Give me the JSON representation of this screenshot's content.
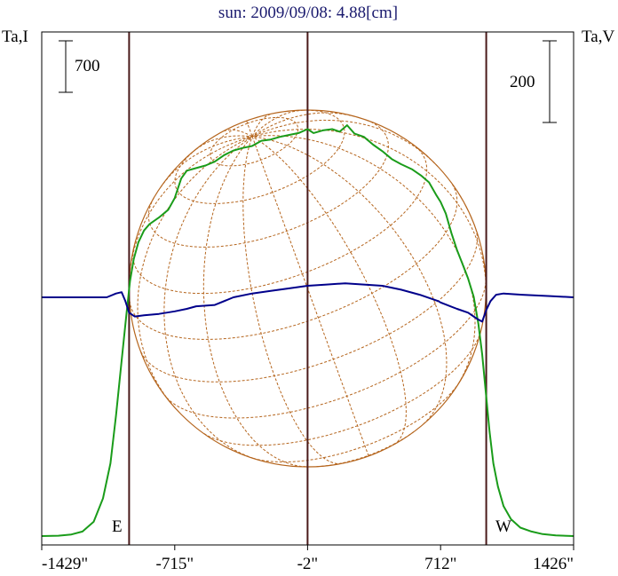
{
  "title": "sun: 2009/09/08: 4.88[cm]",
  "left_axis_label": "Ta,I",
  "right_axis_label": "Ta,V",
  "scale_bar_left": "700",
  "scale_bar_right": "200",
  "limb_labels": {
    "east": "E",
    "west": "W"
  },
  "colors": {
    "intensity": "#1a9c1a",
    "polarization": "#00008b",
    "sphere": "#b5651d",
    "guides": "#4a1a1a",
    "title": "#1a1a6e"
  },
  "chart_data": {
    "type": "line",
    "title": "sun: 2009/09/08: 4.88[cm]",
    "xlabel": "",
    "ylabel_left": "Ta,I",
    "ylabel_right": "Ta,V",
    "x_tick_labels": [
      "-1429\"",
      "-715\"",
      "-2\"",
      "712\"",
      "1426\""
    ],
    "x_ticks": [
      -1429,
      -715,
      -2,
      712,
      1426
    ],
    "xlim": [
      -1429,
      1426
    ],
    "vertical_markers": [
      -960,
      -2,
      957
    ],
    "solar_radius_arcsec": 958,
    "scale_bars": {
      "intensity": 700,
      "polarization": 200
    },
    "series": [
      {
        "name": "Ta,I",
        "color": "#1a9c1a",
        "axis": "left",
        "points": [
          [
            -1429,
            0
          ],
          [
            -1340,
            3
          ],
          [
            -1270,
            12
          ],
          [
            -1210,
            35
          ],
          [
            -1150,
            110
          ],
          [
            -1100,
            290
          ],
          [
            -1060,
            560
          ],
          [
            -1030,
            930
          ],
          [
            -1000,
            1350
          ],
          [
            -975,
            1700
          ],
          [
            -955,
            1960
          ],
          [
            -935,
            2130
          ],
          [
            -910,
            2260
          ],
          [
            -880,
            2350
          ],
          [
            -850,
            2400
          ],
          [
            -800,
            2450
          ],
          [
            -750,
            2510
          ],
          [
            -715,
            2600
          ],
          [
            -680,
            2750
          ],
          [
            -650,
            2810
          ],
          [
            -600,
            2830
          ],
          [
            -550,
            2850
          ],
          [
            -500,
            2880
          ],
          [
            -450,
            2930
          ],
          [
            -400,
            2965
          ],
          [
            -350,
            2985
          ],
          [
            -300,
            3000
          ],
          [
            -250,
            3040
          ],
          [
            -200,
            3050
          ],
          [
            -150,
            3070
          ],
          [
            -100,
            3085
          ],
          [
            -50,
            3100
          ],
          [
            -2,
            3130
          ],
          [
            30,
            3100
          ],
          [
            80,
            3120
          ],
          [
            130,
            3130
          ],
          [
            170,
            3110
          ],
          [
            210,
            3160
          ],
          [
            250,
            3095
          ],
          [
            300,
            3070
          ],
          [
            350,
            3010
          ],
          [
            400,
            2960
          ],
          [
            450,
            2900
          ],
          [
            500,
            2860
          ],
          [
            560,
            2820
          ],
          [
            610,
            2770
          ],
          [
            650,
            2720
          ],
          [
            690,
            2620
          ],
          [
            712,
            2570
          ],
          [
            740,
            2480
          ],
          [
            770,
            2330
          ],
          [
            800,
            2200
          ],
          [
            830,
            2090
          ],
          [
            860,
            1980
          ],
          [
            890,
            1840
          ],
          [
            915,
            1630
          ],
          [
            935,
            1400
          ],
          [
            955,
            1100
          ],
          [
            975,
            800
          ],
          [
            995,
            560
          ],
          [
            1020,
            380
          ],
          [
            1050,
            230
          ],
          [
            1090,
            130
          ],
          [
            1140,
            65
          ],
          [
            1200,
            35
          ],
          [
            1260,
            15
          ],
          [
            1330,
            5
          ],
          [
            1426,
            0
          ]
        ]
      },
      {
        "name": "Ta,V",
        "color": "#00008b",
        "axis": "right",
        "points": [
          [
            -1429,
            0
          ],
          [
            -1300,
            0
          ],
          [
            -1200,
            0
          ],
          [
            -1080,
            0
          ],
          [
            -1030,
            3
          ],
          [
            -1000,
            4
          ],
          [
            -980,
            -3
          ],
          [
            -960,
            -12
          ],
          [
            -930,
            -15
          ],
          [
            -880,
            -14
          ],
          [
            -800,
            -13
          ],
          [
            -715,
            -11
          ],
          [
            -650,
            -9
          ],
          [
            -600,
            -7
          ],
          [
            -500,
            -6
          ],
          [
            -400,
            0
          ],
          [
            -300,
            3
          ],
          [
            -200,
            5
          ],
          [
            -100,
            7
          ],
          [
            -2,
            9
          ],
          [
            100,
            10
          ],
          [
            200,
            11
          ],
          [
            300,
            10
          ],
          [
            400,
            9
          ],
          [
            500,
            6
          ],
          [
            600,
            2
          ],
          [
            700,
            -3
          ],
          [
            712,
            -4
          ],
          [
            800,
            -9
          ],
          [
            860,
            -12
          ],
          [
            910,
            -17
          ],
          [
            935,
            -19
          ],
          [
            957,
            -10
          ],
          [
            980,
            -3
          ],
          [
            1010,
            2
          ],
          [
            1050,
            3
          ],
          [
            1150,
            2
          ],
          [
            1300,
            1
          ],
          [
            1426,
            0
          ]
        ]
      }
    ]
  }
}
